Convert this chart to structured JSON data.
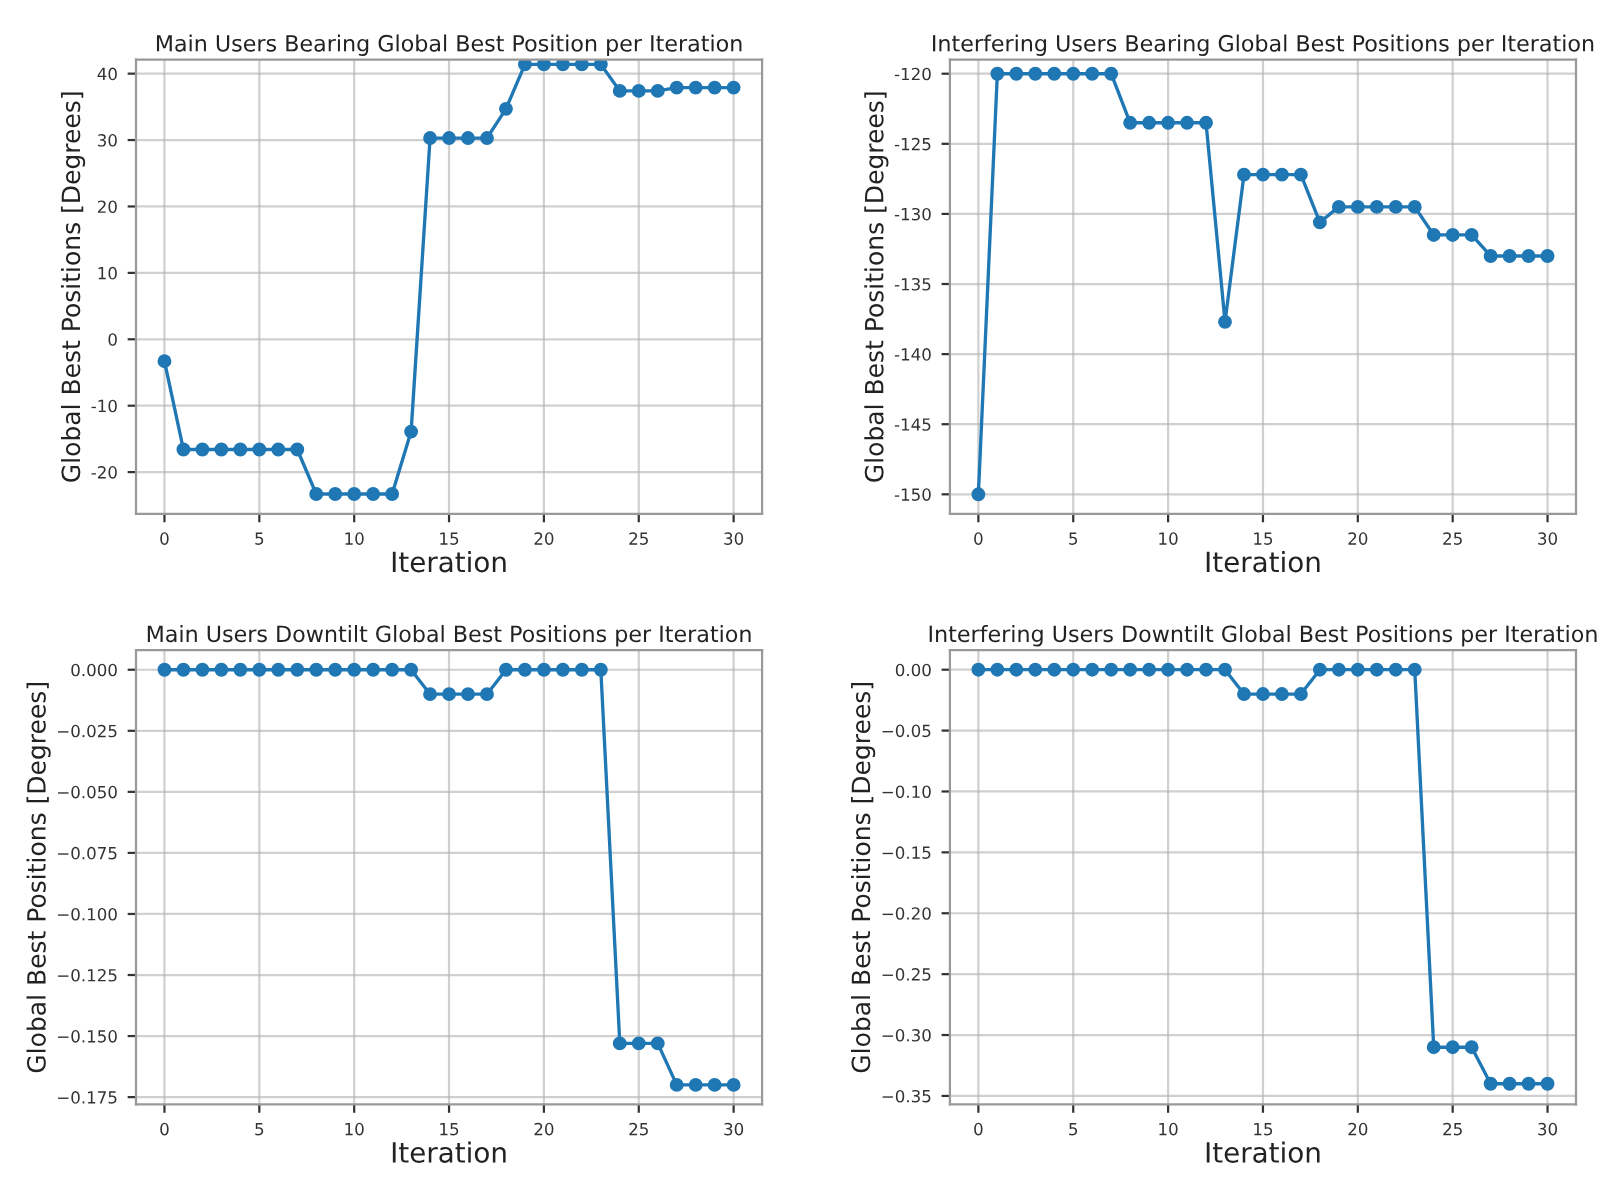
{
  "chart_data": [
    {
      "type": "line",
      "title": "Main Users Bearing Global Best Position per Iteration",
      "xlabel": "Iteration",
      "ylabel": "Global Best Positions [Degrees]",
      "x": [
        0,
        1,
        2,
        3,
        4,
        5,
        6,
        7,
        8,
        9,
        10,
        11,
        12,
        13,
        14,
        15,
        16,
        17,
        18,
        19,
        20,
        21,
        22,
        23,
        24,
        25,
        26,
        27,
        28,
        29,
        30
      ],
      "series": [
        {
          "color": "#1f77b4",
          "values": [
            -3.3,
            -16.6,
            -16.6,
            -16.6,
            -16.6,
            -16.6,
            -16.6,
            -16.6,
            -23.3,
            -23.3,
            -23.3,
            -23.3,
            -23.3,
            -13.9,
            30.3,
            30.3,
            30.3,
            30.3,
            34.7,
            41.4,
            41.4,
            41.4,
            41.4,
            41.4,
            37.4,
            37.4,
            37.4,
            37.9,
            37.9,
            37.9,
            37.9
          ]
        }
      ],
      "xlim": [
        -1.5,
        31.5
      ],
      "xticks": [
        0,
        5,
        10,
        15,
        20,
        25,
        30
      ],
      "ylim": [
        -26.3,
        42.1
      ],
      "yticks": [
        -20,
        -10,
        0,
        10,
        20,
        30,
        40
      ],
      "grid": true,
      "marker": "circle",
      "line_style": "solid"
    },
    {
      "type": "line",
      "title": "Interfering Users Bearing Global Best Positions per Iteration",
      "xlabel": "Iteration",
      "ylabel": "Global Best Positions [Degrees]",
      "x": [
        0,
        1,
        2,
        3,
        4,
        5,
        6,
        7,
        8,
        9,
        10,
        11,
        12,
        13,
        14,
        15,
        16,
        17,
        18,
        19,
        20,
        21,
        22,
        23,
        24,
        25,
        26,
        27,
        28,
        29,
        30
      ],
      "series": [
        {
          "color": "#1f77b4",
          "values": [
            -150,
            -120,
            -120,
            -120,
            -120,
            -120,
            -120,
            -120,
            -123.5,
            -123.5,
            -123.5,
            -123.5,
            -123.5,
            -137.7,
            -127.2,
            -127.2,
            -127.2,
            -127.2,
            -130.6,
            -129.5,
            -129.5,
            -129.5,
            -129.5,
            -129.5,
            -131.5,
            -131.5,
            -131.5,
            -133.0,
            -133.0,
            -133.0,
            -133.0
          ]
        }
      ],
      "xlim": [
        -1.5,
        31.5
      ],
      "xticks": [
        0,
        5,
        10,
        15,
        20,
        25,
        30
      ],
      "ylim": [
        -151.4,
        -119.0
      ],
      "yticks": [
        -150,
        -145,
        -140,
        -135,
        -130,
        -125,
        -120
      ],
      "grid": true,
      "marker": "circle",
      "line_style": "solid"
    },
    {
      "type": "line",
      "title": "Main Users Downtilt Global Best Positions per Iteration",
      "xlabel": "Iteration",
      "ylabel": "Global Best Positions [Degrees]",
      "x": [
        0,
        1,
        2,
        3,
        4,
        5,
        6,
        7,
        8,
        9,
        10,
        11,
        12,
        13,
        14,
        15,
        16,
        17,
        18,
        19,
        20,
        21,
        22,
        23,
        24,
        25,
        26,
        27,
        28,
        29,
        30
      ],
      "series": [
        {
          "color": "#1f77b4",
          "values": [
            0,
            0,
            0,
            0,
            0,
            0,
            0,
            0,
            0,
            0,
            0,
            0,
            0,
            0,
            -0.01,
            -0.01,
            -0.01,
            -0.01,
            0,
            0,
            0,
            0,
            0,
            0,
            -0.153,
            -0.153,
            -0.153,
            -0.17,
            -0.17,
            -0.17,
            -0.17
          ]
        }
      ],
      "xlim": [
        -1.5,
        31.5
      ],
      "xticks": [
        0,
        5,
        10,
        15,
        20,
        25,
        30
      ],
      "ylim": [
        -0.178,
        0.008
      ],
      "yticks": [
        {
          "value": -0.175,
          "label": "−0.175"
        },
        {
          "value": -0.15,
          "label": "−0.150"
        },
        {
          "value": -0.125,
          "label": "−0.125"
        },
        {
          "value": -0.1,
          "label": "−0.100"
        },
        {
          "value": -0.075,
          "label": "−0.075"
        },
        {
          "value": -0.05,
          "label": "−0.050"
        },
        {
          "value": -0.025,
          "label": "−0.025"
        },
        {
          "value": 0,
          "label": "0.000"
        }
      ],
      "grid": true,
      "marker": "circle",
      "line_style": "solid"
    },
    {
      "type": "line",
      "title": "Interfering Users Downtilt Global Best Positions per Iteration",
      "xlabel": "Iteration",
      "ylabel": "Global Best Positions [Degrees]",
      "x": [
        0,
        1,
        2,
        3,
        4,
        5,
        6,
        7,
        8,
        9,
        10,
        11,
        12,
        13,
        14,
        15,
        16,
        17,
        18,
        19,
        20,
        21,
        22,
        23,
        24,
        25,
        26,
        27,
        28,
        29,
        30
      ],
      "series": [
        {
          "color": "#1f77b4",
          "values": [
            0,
            0,
            0,
            0,
            0,
            0,
            0,
            0,
            0,
            0,
            0,
            0,
            0,
            0,
            -0.02,
            -0.02,
            -0.02,
            -0.02,
            0,
            0,
            0,
            0,
            0,
            0,
            -0.31,
            -0.31,
            -0.31,
            -0.34,
            -0.34,
            -0.34,
            -0.34
          ]
        }
      ],
      "xlim": [
        -1.5,
        31.5
      ],
      "xticks": [
        0,
        5,
        10,
        15,
        20,
        25,
        30
      ],
      "ylim": [
        -0.357,
        0.016
      ],
      "yticks": [
        {
          "value": -0.35,
          "label": "−0.35"
        },
        {
          "value": -0.3,
          "label": "−0.30"
        },
        {
          "value": -0.25,
          "label": "−0.25"
        },
        {
          "value": -0.2,
          "label": "−0.20"
        },
        {
          "value": -0.15,
          "label": "−0.15"
        },
        {
          "value": -0.1,
          "label": "−0.10"
        },
        {
          "value": -0.05,
          "label": "−0.05"
        },
        {
          "value": 0,
          "label": "0.00"
        }
      ],
      "grid": true,
      "marker": "circle",
      "line_style": "solid"
    }
  ]
}
